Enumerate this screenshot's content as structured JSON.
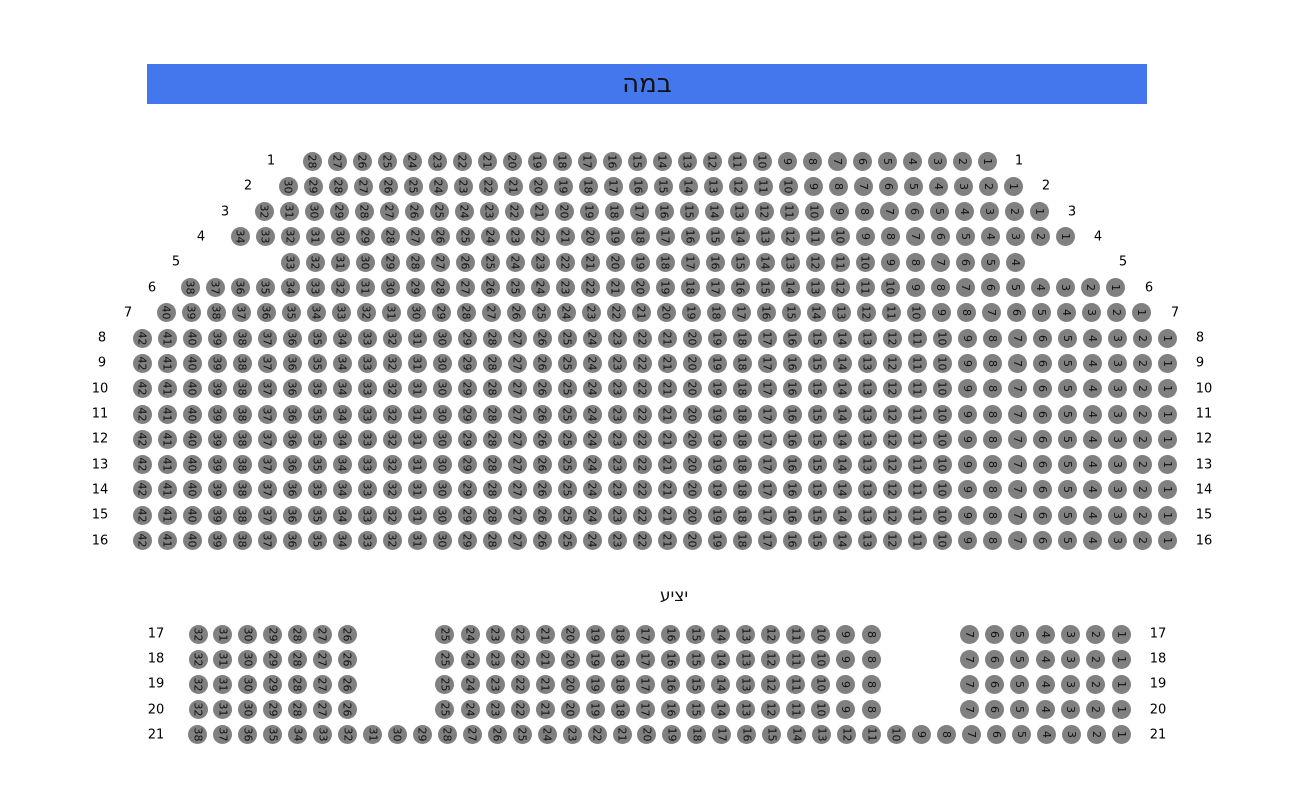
{
  "stage": {
    "label": "במה",
    "color": "#4477ee"
  },
  "balcony_label": "יציע",
  "seat_color": "#808080",
  "main_floor": [
    {
      "label": "1",
      "blocks": [
        [
          1,
          28
        ]
      ]
    },
    {
      "label": "2",
      "blocks": [
        [
          1,
          30
        ]
      ]
    },
    {
      "label": "3",
      "blocks": [
        [
          1,
          32
        ]
      ]
    },
    {
      "label": "4",
      "blocks": [
        [
          1,
          34
        ]
      ]
    },
    {
      "label": "5",
      "blocks": [
        [
          4,
          33
        ]
      ]
    },
    {
      "label": "6",
      "blocks": [
        [
          1,
          38
        ]
      ]
    },
    {
      "label": "7",
      "blocks": [
        [
          1,
          40
        ]
      ]
    },
    {
      "label": "8",
      "blocks": [
        [
          1,
          42
        ]
      ]
    },
    {
      "label": "9",
      "blocks": [
        [
          1,
          42
        ]
      ]
    },
    {
      "label": "10",
      "blocks": [
        [
          1,
          42
        ]
      ]
    },
    {
      "label": "11",
      "blocks": [
        [
          1,
          42
        ]
      ]
    },
    {
      "label": "12",
      "blocks": [
        [
          1,
          42
        ]
      ]
    },
    {
      "label": "13",
      "blocks": [
        [
          1,
          42
        ]
      ]
    },
    {
      "label": "14",
      "blocks": [
        [
          1,
          42
        ]
      ]
    },
    {
      "label": "15",
      "blocks": [
        [
          1,
          42
        ]
      ]
    },
    {
      "label": "16",
      "blocks": [
        [
          1,
          42
        ]
      ]
    }
  ],
  "balcony": [
    {
      "label": "17",
      "blocks": [
        [
          1,
          7
        ],
        [
          8,
          25
        ],
        [
          26,
          32
        ]
      ]
    },
    {
      "label": "18",
      "blocks": [
        [
          1,
          7
        ],
        [
          8,
          25
        ],
        [
          26,
          32
        ]
      ]
    },
    {
      "label": "19",
      "blocks": [
        [
          1,
          7
        ],
        [
          8,
          25
        ],
        [
          26,
          32
        ]
      ]
    },
    {
      "label": "20",
      "blocks": [
        [
          1,
          7
        ],
        [
          8,
          25
        ],
        [
          26,
          32
        ]
      ]
    },
    {
      "label": "21",
      "blocks": [
        [
          1,
          38
        ]
      ]
    }
  ]
}
